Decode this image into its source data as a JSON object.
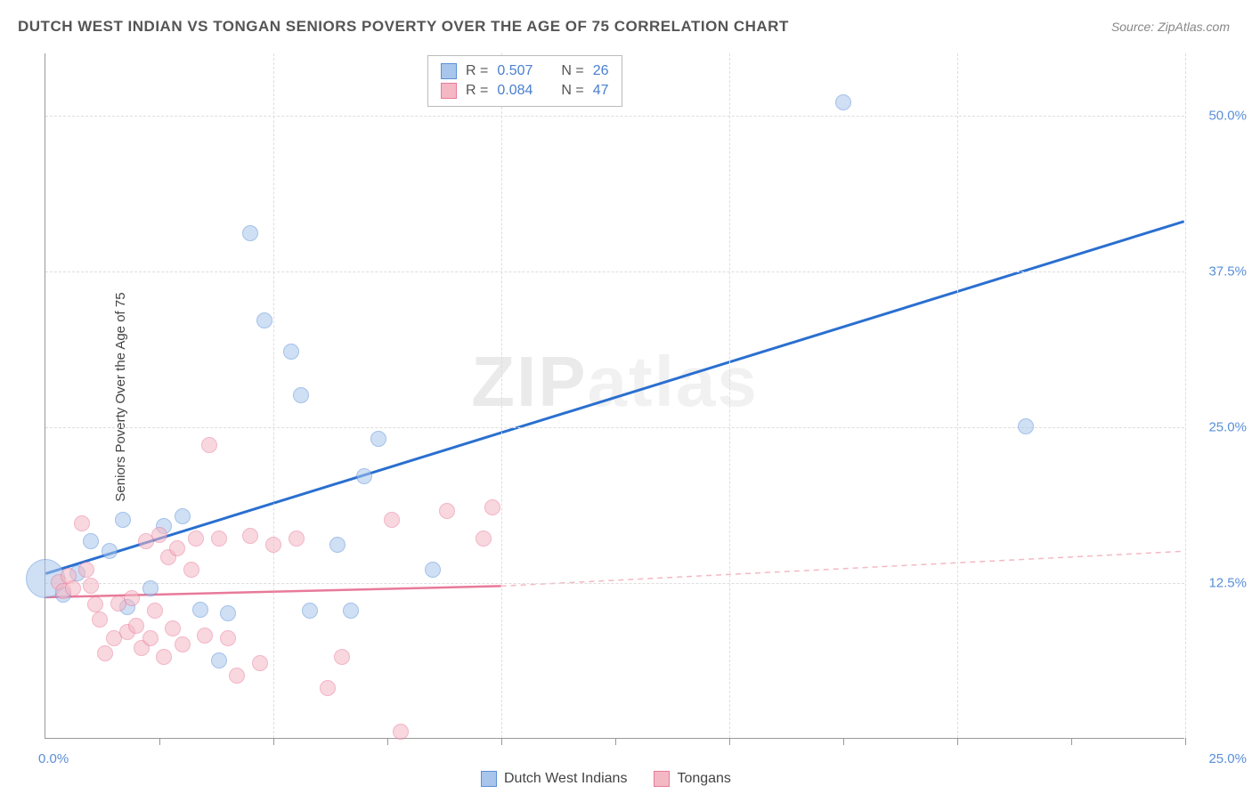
{
  "title": "DUTCH WEST INDIAN VS TONGAN SENIORS POVERTY OVER THE AGE OF 75 CORRELATION CHART",
  "source": "Source: ZipAtlas.com",
  "ylabel": "Seniors Poverty Over the Age of 75",
  "watermark": "ZIPatlas",
  "chart": {
    "type": "scatter",
    "xlim": [
      0,
      25
    ],
    "ylim": [
      0,
      55
    ],
    "xtick_start": "0.0%",
    "xtick_end": "25.0%",
    "yticks": [
      {
        "v": 12.5,
        "label": "12.5%"
      },
      {
        "v": 25.0,
        "label": "25.0%"
      },
      {
        "v": 37.5,
        "label": "37.5%"
      },
      {
        "v": 50.0,
        "label": "50.0%"
      }
    ],
    "x_minor_ticks": [
      2.5,
      5,
      7.5,
      10,
      12.5,
      15,
      17.5,
      20,
      22.5,
      25
    ],
    "background_color": "#ffffff",
    "grid_color": "#dddddd",
    "series": [
      {
        "name": "Dutch West Indians",
        "color_fill": "#a8c6ec",
        "color_stroke": "#5a8fd8",
        "fill_opacity": 0.55,
        "marker_radius": 9,
        "R": "0.507",
        "N": "26",
        "trend": {
          "x1": 0,
          "y1": 13.2,
          "x2": 25,
          "y2": 41.5,
          "color": "#2a6fd0",
          "width": 3,
          "dash": ""
        },
        "points": [
          {
            "x": 0.0,
            "y": 12.8,
            "r": 22
          },
          {
            "x": 0.4,
            "y": 11.5
          },
          {
            "x": 0.7,
            "y": 13.2
          },
          {
            "x": 1.0,
            "y": 15.8
          },
          {
            "x": 1.4,
            "y": 15.0
          },
          {
            "x": 1.7,
            "y": 17.5
          },
          {
            "x": 1.8,
            "y": 10.5
          },
          {
            "x": 2.3,
            "y": 12.0
          },
          {
            "x": 2.6,
            "y": 17.0
          },
          {
            "x": 3.0,
            "y": 17.8
          },
          {
            "x": 3.4,
            "y": 10.3
          },
          {
            "x": 3.8,
            "y": 6.2
          },
          {
            "x": 4.0,
            "y": 10.0
          },
          {
            "x": 4.5,
            "y": 40.5
          },
          {
            "x": 4.8,
            "y": 33.5
          },
          {
            "x": 5.4,
            "y": 31.0
          },
          {
            "x": 5.6,
            "y": 27.5
          },
          {
            "x": 5.8,
            "y": 10.2
          },
          {
            "x": 6.4,
            "y": 15.5
          },
          {
            "x": 6.7,
            "y": 10.2
          },
          {
            "x": 7.0,
            "y": 21.0
          },
          {
            "x": 7.3,
            "y": 24.0
          },
          {
            "x": 8.5,
            "y": 13.5
          },
          {
            "x": 17.5,
            "y": 51.0
          },
          {
            "x": 21.5,
            "y": 25.0
          }
        ]
      },
      {
        "name": "Tongans",
        "color_fill": "#f4b8c4",
        "color_stroke": "#e87a9a",
        "fill_opacity": 0.55,
        "marker_radius": 9,
        "R": "0.084",
        "N": "47",
        "trend_solid": {
          "x1": 0,
          "y1": 11.3,
          "x2": 10,
          "y2": 12.2,
          "color": "#e87a9a",
          "width": 2.5,
          "dash": ""
        },
        "trend_dash": {
          "x1": 10,
          "y1": 12.2,
          "x2": 25,
          "y2": 15.0,
          "color": "#f4b8c4",
          "width": 1.5,
          "dash": "6,5"
        },
        "points": [
          {
            "x": 0.3,
            "y": 12.5
          },
          {
            "x": 0.4,
            "y": 11.8
          },
          {
            "x": 0.5,
            "y": 13.0
          },
          {
            "x": 0.6,
            "y": 12.0
          },
          {
            "x": 0.8,
            "y": 17.2
          },
          {
            "x": 0.9,
            "y": 13.5
          },
          {
            "x": 1.0,
            "y": 12.2
          },
          {
            "x": 1.1,
            "y": 10.7
          },
          {
            "x": 1.2,
            "y": 9.5
          },
          {
            "x": 1.3,
            "y": 6.8
          },
          {
            "x": 1.5,
            "y": 8.0
          },
          {
            "x": 1.6,
            "y": 10.8
          },
          {
            "x": 1.8,
            "y": 8.5
          },
          {
            "x": 1.9,
            "y": 11.2
          },
          {
            "x": 2.0,
            "y": 9.0
          },
          {
            "x": 2.1,
            "y": 7.2
          },
          {
            "x": 2.2,
            "y": 15.8
          },
          {
            "x": 2.3,
            "y": 8.0
          },
          {
            "x": 2.4,
            "y": 10.2
          },
          {
            "x": 2.5,
            "y": 16.3
          },
          {
            "x": 2.6,
            "y": 6.5
          },
          {
            "x": 2.7,
            "y": 14.5
          },
          {
            "x": 2.8,
            "y": 8.8
          },
          {
            "x": 2.9,
            "y": 15.2
          },
          {
            "x": 3.0,
            "y": 7.5
          },
          {
            "x": 3.2,
            "y": 13.5
          },
          {
            "x": 3.3,
            "y": 16.0
          },
          {
            "x": 3.5,
            "y": 8.2
          },
          {
            "x": 3.6,
            "y": 23.5
          },
          {
            "x": 3.8,
            "y": 16.0
          },
          {
            "x": 4.0,
            "y": 8.0
          },
          {
            "x": 4.2,
            "y": 5.0
          },
          {
            "x": 4.5,
            "y": 16.2
          },
          {
            "x": 4.7,
            "y": 6.0
          },
          {
            "x": 5.0,
            "y": 15.5
          },
          {
            "x": 5.5,
            "y": 16.0
          },
          {
            "x": 6.2,
            "y": 4.0
          },
          {
            "x": 6.5,
            "y": 6.5
          },
          {
            "x": 7.6,
            "y": 17.5
          },
          {
            "x": 7.8,
            "y": 0.5
          },
          {
            "x": 8.8,
            "y": 18.2
          },
          {
            "x": 9.6,
            "y": 16.0
          },
          {
            "x": 9.8,
            "y": 18.5
          }
        ]
      }
    ]
  },
  "bottom_legend": [
    {
      "label": "Dutch West Indians",
      "fill": "#a8c6ec",
      "stroke": "#5a8fd8"
    },
    {
      "label": "Tongans",
      "fill": "#f4b8c4",
      "stroke": "#e87a9a"
    }
  ]
}
